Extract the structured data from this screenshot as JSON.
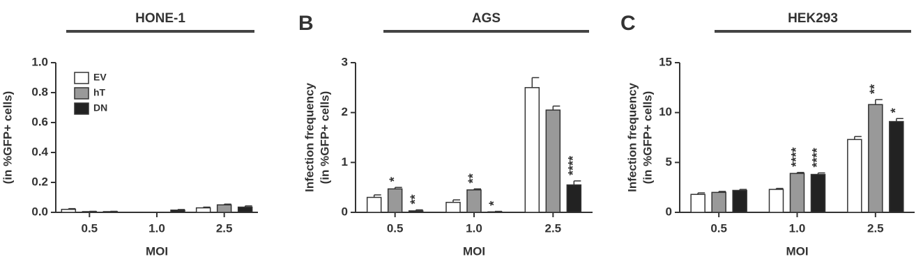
{
  "chart_data": [
    {
      "type": "bar",
      "panel": null,
      "title": "HONE-1",
      "ylabel": [
        "(in %GFP+ cells)"
      ],
      "xlabel": "MOI",
      "categories": [
        "0.5",
        "1.0",
        "2.5"
      ],
      "series": [
        {
          "name": "EV",
          "color": "#ffffff",
          "values": [
            0.02,
            0,
            0.03
          ],
          "errors": [
            0.005,
            0,
            0.005
          ],
          "significance": [
            null,
            null,
            null
          ]
        },
        {
          "name": "hT",
          "color": "#999999",
          "values": [
            0.005,
            0,
            0.05
          ],
          "errors": [
            0.002,
            0,
            0.005
          ],
          "significance": [
            null,
            null,
            null
          ]
        },
        {
          "name": "DN",
          "color": "#222222",
          "values": [
            0.005,
            0.015,
            0.035
          ],
          "errors": [
            0.002,
            0.004,
            0.008
          ],
          "significance": [
            null,
            null,
            null
          ]
        }
      ],
      "ylim": [
        0,
        1
      ],
      "yticks": [
        {
          "value": 0,
          "label": "0.0"
        },
        0.2,
        0.4,
        0.6,
        0.8,
        {
          "value": 1,
          "label": "1.0"
        }
      ],
      "legend": true
    },
    {
      "type": "bar",
      "panel": "B",
      "title": "AGS",
      "ylabel": [
        "Infection frequency",
        "(in %GFP+ cells)"
      ],
      "xlabel": "MOI",
      "categories": [
        "0.5",
        "1.0",
        "2.5"
      ],
      "series": [
        {
          "name": "EV",
          "color": "#ffffff",
          "values": [
            0.3,
            0.2,
            2.5
          ],
          "errors": [
            0.05,
            0.05,
            0.2
          ],
          "significance": [
            null,
            null,
            null
          ]
        },
        {
          "name": "hT",
          "color": "#999999",
          "values": [
            0.47,
            0.45,
            2.05
          ],
          "errors": [
            0.03,
            0.02,
            0.08
          ],
          "significance": [
            "*",
            "**",
            null
          ]
        },
        {
          "name": "DN",
          "color": "#222222",
          "values": [
            0.03,
            0.01,
            0.55
          ],
          "errors": [
            0.02,
            0.01,
            0.08
          ],
          "significance": [
            "**",
            "*",
            "****"
          ]
        }
      ],
      "ylim": [
        0,
        3
      ],
      "yticks": [
        0,
        1,
        2,
        3
      ],
      "legend": false
    },
    {
      "type": "bar",
      "panel": "C",
      "title": "HEK293",
      "ylabel": [
        "Infection frequency",
        "(in %GFP+ cells)"
      ],
      "xlabel": "MOI",
      "categories": [
        "0.5",
        "1.0",
        "2.5"
      ],
      "series": [
        {
          "name": "EV",
          "color": "#ffffff",
          "values": [
            1.8,
            2.3,
            7.3
          ],
          "errors": [
            0.15,
            0.1,
            0.3
          ],
          "significance": [
            null,
            null,
            null
          ]
        },
        {
          "name": "hT",
          "color": "#999999",
          "values": [
            2.0,
            3.9,
            10.8
          ],
          "errors": [
            0.1,
            0.1,
            0.5
          ],
          "significance": [
            null,
            "****",
            "**"
          ]
        },
        {
          "name": "DN",
          "color": "#222222",
          "values": [
            2.2,
            3.8,
            9.1
          ],
          "errors": [
            0.1,
            0.15,
            0.3
          ],
          "significance": [
            null,
            "****",
            "*"
          ]
        }
      ],
      "ylim": [
        0,
        15
      ],
      "yticks": [
        0,
        5,
        10,
        15
      ],
      "legend": false
    }
  ]
}
